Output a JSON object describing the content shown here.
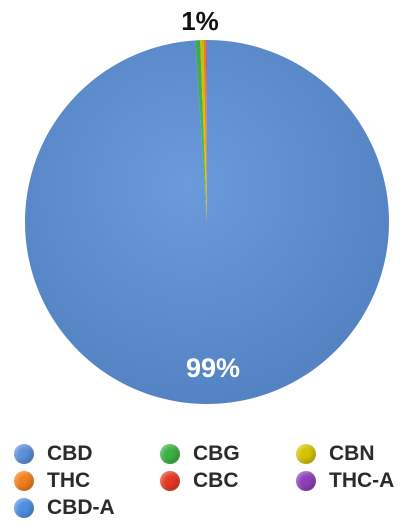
{
  "chart_data": {
    "type": "pie",
    "slices": [
      {
        "name": "CBD",
        "value": 99,
        "color": "#5b8fd6"
      },
      {
        "name": "CBG",
        "value": 0.4,
        "color": "#3cb043"
      },
      {
        "name": "CBN",
        "value": 0.3,
        "color": "#d4c400"
      },
      {
        "name": "THC",
        "value": 0.2,
        "color": "#f07f1c"
      },
      {
        "name": "CBC",
        "value": 0.05,
        "color": "#e53a24"
      },
      {
        "name": "THC-A",
        "value": 0.03,
        "color": "#8e3fb8"
      },
      {
        "name": "CBD-A",
        "value": 0.02,
        "color": "#4f8fe0"
      }
    ],
    "data_labels": {
      "main": "99%",
      "other": "1%"
    },
    "legend": {
      "placement": "bottom",
      "entries": [
        "CBD",
        "CBG",
        "CBN",
        "THC",
        "CBC",
        "THC-A",
        "CBD-A"
      ]
    }
  }
}
